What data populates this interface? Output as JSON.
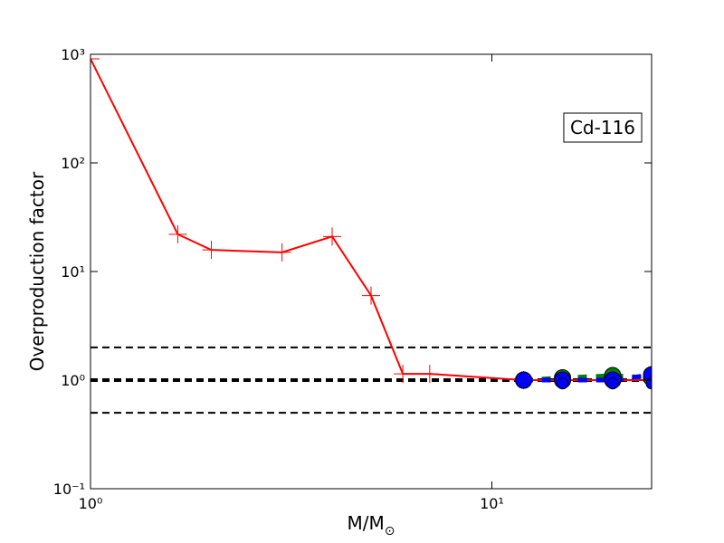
{
  "chart_data": {
    "type": "line",
    "x_label": "M/M",
    "x_label_subscript": "⊙",
    "y_label": "Overproduction factor",
    "annotation": "Cd-116",
    "log_x": true,
    "log_y": true,
    "xlim": [
      1,
      25
    ],
    "ylim": [
      0.1,
      1000
    ],
    "xticks": [
      {
        "value": 1,
        "label": "10⁰"
      },
      {
        "value": 10,
        "label": "10¹"
      }
    ],
    "yticks": [
      {
        "value": 0.1,
        "label": "10⁻¹"
      },
      {
        "value": 1,
        "label": "10⁰"
      },
      {
        "value": 10,
        "label": "10¹"
      },
      {
        "value": 100,
        "label": "10²"
      },
      {
        "value": 1000,
        "label": "10³"
      }
    ],
    "reference_lines": [
      2,
      1,
      0.5
    ],
    "series": [
      {
        "color": "#ff0000",
        "marker": "plus",
        "line": "solid",
        "x": [
          1,
          1.65,
          2,
          3,
          4,
          5,
          6,
          7,
          12,
          15,
          20,
          25
        ],
        "values": [
          908,
          22,
          15.8,
          15,
          21,
          6,
          1.14,
          1.14,
          1.0,
          1.0,
          1.0,
          1.0
        ]
      },
      {
        "color": "#008000",
        "marker": "circle",
        "line": "dashed",
        "x": [
          12,
          15,
          20,
          25
        ],
        "values": [
          1.0,
          1.05,
          1.1,
          1.05
        ]
      },
      {
        "color": "#0000ff",
        "marker": "circle",
        "line": "dashed",
        "x": [
          12,
          15,
          20,
          25
        ],
        "values": [
          1.0,
          1.0,
          1.0,
          1.12
        ]
      },
      {
        "color": "#0000ff",
        "marker": "small-circle",
        "line": "none",
        "x": [
          15,
          20,
          25
        ],
        "values": [
          0.93,
          0.93,
          0.93
        ]
      }
    ]
  }
}
